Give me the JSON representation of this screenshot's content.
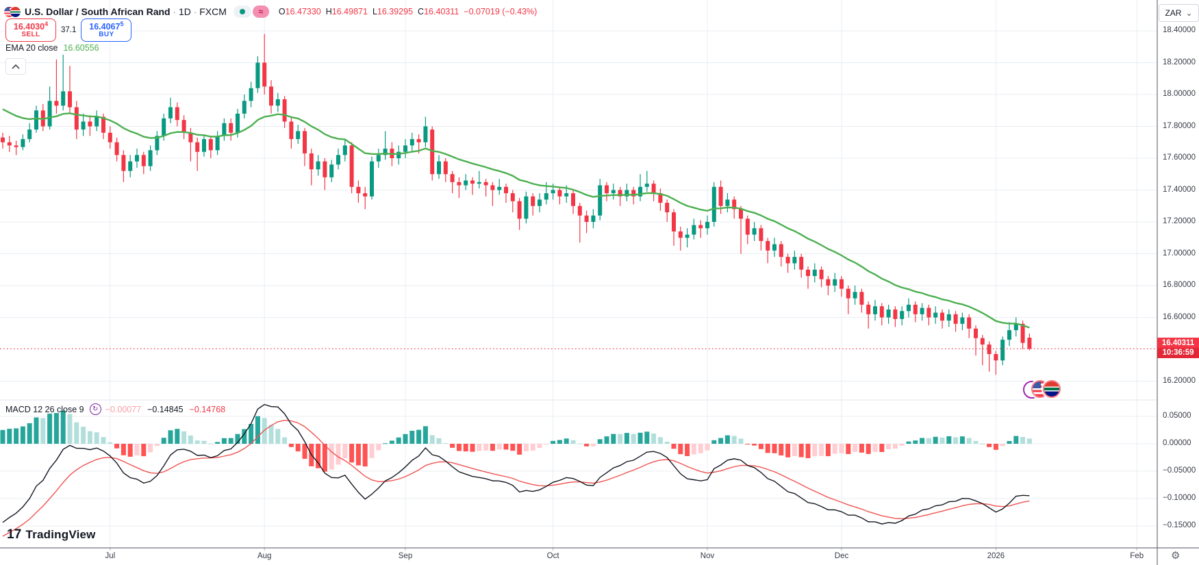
{
  "header": {
    "symbol": "U.S. Dollar / South African Rand",
    "separator": "·",
    "interval": "1D",
    "exchange": "FXCM",
    "alert_glyph": "≈",
    "ohlc": {
      "o_label": "O",
      "o": "16.47330",
      "h_label": "H",
      "h": "16.49871",
      "l_label": "L",
      "l": "16.39295",
      "c_label": "C",
      "c": "16.40311",
      "change": "−0.07019 (−0.43%)"
    }
  },
  "trade_panel": {
    "sell": {
      "price": "16.4030",
      "sup": "4",
      "label": "SELL"
    },
    "spread": "37.1",
    "buy": {
      "price": "16.4067",
      "sup": "5",
      "label": "BUY"
    }
  },
  "ema_row": {
    "label": "EMA 20 close",
    "value": "16.60556"
  },
  "macd_row": {
    "label": "MACD 12 26 close 9",
    "icon_glyph": "↻",
    "hist_value": "−0.00077",
    "macd_value": "−0.14845",
    "signal_value": "−0.14768"
  },
  "price_axis": {
    "currency": "ZAR",
    "chevron": "⌄",
    "labels": [
      {
        "text": "18.40000",
        "value": 18.4
      },
      {
        "text": "18.20000",
        "value": 18.2
      },
      {
        "text": "18.00000",
        "value": 18.0
      },
      {
        "text": "17.80000",
        "value": 17.8
      },
      {
        "text": "17.60000",
        "value": 17.6
      },
      {
        "text": "17.40000",
        "value": 17.4
      },
      {
        "text": "17.20000",
        "value": 17.2
      },
      {
        "text": "17.00000",
        "value": 17.0
      },
      {
        "text": "16.80000",
        "value": 16.8
      },
      {
        "text": "16.60000",
        "value": 16.6
      },
      {
        "text": "16.20000",
        "value": 16.2
      }
    ],
    "last": {
      "price": "16.40311",
      "countdown": "10:36:59"
    }
  },
  "macd_axis": {
    "labels": [
      {
        "text": "0.05000",
        "value": 0.05
      },
      {
        "text": "0.00000",
        "value": 0.0
      },
      {
        "text": "−0.05000",
        "value": -0.05
      },
      {
        "text": "−0.10000",
        "value": -0.1
      },
      {
        "text": "−0.15000",
        "value": -0.15
      }
    ]
  },
  "time_axis": {
    "labels": [
      {
        "text": "Jul",
        "index": 16
      },
      {
        "text": "Aug",
        "index": 39
      },
      {
        "text": "Sep",
        "index": 60
      },
      {
        "text": "Oct",
        "index": 82
      },
      {
        "text": "Nov",
        "index": 105
      },
      {
        "text": "Dec",
        "index": 125
      },
      {
        "text": "2026",
        "index": 148
      },
      {
        "text": "Feb",
        "index": 169
      }
    ]
  },
  "logo": {
    "glyph": "17",
    "text": "TradingView"
  },
  "gear_glyph": "⚙",
  "colors": {
    "up": "#089981",
    "down": "#f23645",
    "ema": "#4caf50",
    "macd_line": "#131722",
    "signal_line": "#ef5350",
    "hist_up": "#26a69a",
    "hist_up_weak": "#b2dfdb",
    "hist_down": "#ff5252",
    "hist_down_weak": "#ffcdd2",
    "grid": "#e8edf3",
    "pane_sep": "#e0e3eb",
    "axis_border": "#50535e",
    "buy_accent": "#2962ff",
    "last_price": "#f23645"
  },
  "chart_data": {
    "type": "candlestick",
    "title": "U.S. Dollar / South African Rand",
    "interval": "1D",
    "source": "FXCM",
    "last_price": 16.40311,
    "last_ohlc": {
      "o": 16.4733,
      "h": 16.49871,
      "l": 16.39295,
      "c": 16.40311
    },
    "price_ylim": [
      16.08,
      18.59
    ],
    "macd_ylim": [
      -0.19,
      0.08
    ],
    "indicators": [
      {
        "name": "EMA",
        "params": [
          20
        ],
        "last": 16.60556
      },
      {
        "name": "MACD",
        "params": [
          12,
          26,
          9
        ],
        "last_hist": -0.00077,
        "last_macd": -0.14845,
        "last_signal": -0.14768
      }
    ],
    "candles": [
      [
        17.73,
        17.76,
        17.66,
        17.7
      ],
      [
        17.7,
        17.74,
        17.64,
        17.68
      ],
      [
        17.68,
        17.71,
        17.62,
        17.67
      ],
      [
        17.67,
        17.75,
        17.65,
        17.72
      ],
      [
        17.72,
        17.82,
        17.7,
        17.78
      ],
      [
        17.78,
        17.93,
        17.76,
        17.9
      ],
      [
        17.9,
        17.94,
        17.77,
        17.8
      ],
      [
        17.8,
        18.05,
        17.78,
        17.96
      ],
      [
        17.96,
        18.22,
        17.88,
        17.93
      ],
      [
        17.93,
        18.25,
        17.9,
        18.02
      ],
      [
        18.02,
        18.18,
        17.88,
        17.92
      ],
      [
        17.92,
        17.96,
        17.72,
        17.78
      ],
      [
        17.78,
        17.88,
        17.74,
        17.83
      ],
      [
        17.83,
        17.87,
        17.74,
        17.8
      ],
      [
        17.8,
        17.9,
        17.77,
        17.86
      ],
      [
        17.86,
        17.88,
        17.72,
        17.76
      ],
      [
        17.76,
        17.8,
        17.66,
        17.7
      ],
      [
        17.7,
        17.73,
        17.58,
        17.62
      ],
      [
        17.62,
        17.65,
        17.45,
        17.52
      ],
      [
        17.52,
        17.62,
        17.48,
        17.58
      ],
      [
        17.58,
        17.66,
        17.54,
        17.62
      ],
      [
        17.62,
        17.64,
        17.5,
        17.55
      ],
      [
        17.55,
        17.68,
        17.52,
        17.65
      ],
      [
        17.65,
        17.77,
        17.62,
        17.74
      ],
      [
        17.74,
        17.88,
        17.71,
        17.85
      ],
      [
        17.85,
        17.98,
        17.82,
        17.92
      ],
      [
        17.92,
        17.95,
        17.8,
        17.84
      ],
      [
        17.84,
        17.87,
        17.72,
        17.76
      ],
      [
        17.76,
        17.79,
        17.58,
        17.7
      ],
      [
        17.7,
        17.73,
        17.52,
        17.64
      ],
      [
        17.64,
        17.75,
        17.61,
        17.72
      ],
      [
        17.72,
        17.74,
        17.6,
        17.65
      ],
      [
        17.65,
        17.77,
        17.62,
        17.74
      ],
      [
        17.74,
        17.85,
        17.71,
        17.82
      ],
      [
        17.82,
        17.85,
        17.71,
        17.76
      ],
      [
        17.76,
        17.91,
        17.73,
        17.88
      ],
      [
        17.88,
        18.0,
        17.85,
        17.96
      ],
      [
        17.96,
        18.08,
        17.92,
        18.04
      ],
      [
        18.04,
        18.24,
        18.01,
        18.2
      ],
      [
        18.2,
        18.38,
        18.0,
        18.05
      ],
      [
        18.05,
        18.09,
        17.88,
        17.93
      ],
      [
        17.93,
        18.01,
        17.89,
        17.97
      ],
      [
        17.97,
        17.99,
        17.79,
        17.83
      ],
      [
        17.83,
        17.86,
        17.66,
        17.72
      ],
      [
        17.72,
        17.81,
        17.69,
        17.77
      ],
      [
        17.77,
        17.79,
        17.55,
        17.63
      ],
      [
        17.63,
        17.66,
        17.43,
        17.53
      ],
      [
        17.53,
        17.62,
        17.49,
        17.58
      ],
      [
        17.58,
        17.6,
        17.4,
        17.48
      ],
      [
        17.48,
        17.59,
        17.45,
        17.56
      ],
      [
        17.56,
        17.66,
        17.53,
        17.62
      ],
      [
        17.62,
        17.72,
        17.58,
        17.68
      ],
      [
        17.68,
        17.7,
        17.38,
        17.42
      ],
      [
        17.42,
        17.46,
        17.32,
        17.38
      ],
      [
        17.38,
        17.42,
        17.28,
        17.36
      ],
      [
        17.36,
        17.61,
        17.34,
        17.58
      ],
      [
        17.58,
        17.66,
        17.54,
        17.62
      ],
      [
        17.62,
        17.77,
        17.59,
        17.66
      ],
      [
        17.66,
        17.7,
        17.55,
        17.6
      ],
      [
        17.6,
        17.68,
        17.56,
        17.64
      ],
      [
        17.64,
        17.72,
        17.6,
        17.68
      ],
      [
        17.68,
        17.76,
        17.64,
        17.72
      ],
      [
        17.72,
        17.75,
        17.63,
        17.7
      ],
      [
        17.7,
        17.86,
        17.67,
        17.8
      ],
      [
        17.78,
        17.8,
        17.46,
        17.5
      ],
      [
        17.5,
        17.62,
        17.47,
        17.58
      ],
      [
        17.58,
        17.6,
        17.45,
        17.5
      ],
      [
        17.5,
        17.52,
        17.38,
        17.45
      ],
      [
        17.45,
        17.48,
        17.35,
        17.43
      ],
      [
        17.43,
        17.5,
        17.4,
        17.46
      ],
      [
        17.46,
        17.48,
        17.37,
        17.44
      ],
      [
        17.44,
        17.52,
        17.41,
        17.45
      ],
      [
        17.45,
        17.47,
        17.36,
        17.43
      ],
      [
        17.43,
        17.45,
        17.3,
        17.4
      ],
      [
        17.4,
        17.47,
        17.37,
        17.42
      ],
      [
        17.42,
        17.44,
        17.32,
        17.38
      ],
      [
        17.38,
        17.4,
        17.26,
        17.33
      ],
      [
        17.33,
        17.35,
        17.15,
        17.22
      ],
      [
        17.22,
        17.39,
        17.19,
        17.36
      ],
      [
        17.36,
        17.38,
        17.24,
        17.3
      ],
      [
        17.3,
        17.38,
        17.26,
        17.34
      ],
      [
        17.34,
        17.45,
        17.31,
        17.38
      ],
      [
        17.38,
        17.44,
        17.34,
        17.4
      ],
      [
        17.4,
        17.42,
        17.31,
        17.36
      ],
      [
        17.36,
        17.43,
        17.32,
        17.38
      ],
      [
        17.38,
        17.4,
        17.25,
        17.3
      ],
      [
        17.3,
        17.32,
        17.07,
        17.24
      ],
      [
        17.24,
        17.27,
        17.13,
        17.2
      ],
      [
        17.2,
        17.28,
        17.16,
        17.24
      ],
      [
        17.24,
        17.47,
        17.21,
        17.43
      ],
      [
        17.43,
        17.45,
        17.33,
        17.38
      ],
      [
        17.38,
        17.44,
        17.34,
        17.4
      ],
      [
        17.4,
        17.42,
        17.3,
        17.36
      ],
      [
        17.36,
        17.44,
        17.33,
        17.4
      ],
      [
        17.4,
        17.42,
        17.31,
        17.36
      ],
      [
        17.36,
        17.5,
        17.33,
        17.42
      ],
      [
        17.42,
        17.52,
        17.39,
        17.44
      ],
      [
        17.44,
        17.46,
        17.33,
        17.38
      ],
      [
        17.38,
        17.41,
        17.27,
        17.32
      ],
      [
        17.32,
        17.34,
        17.2,
        17.26
      ],
      [
        17.26,
        17.28,
        17.05,
        17.14
      ],
      [
        17.14,
        17.17,
        17.02,
        17.1
      ],
      [
        17.1,
        17.16,
        17.04,
        17.12
      ],
      [
        17.12,
        17.22,
        17.09,
        17.18
      ],
      [
        17.18,
        17.21,
        17.1,
        17.16
      ],
      [
        17.16,
        17.24,
        17.12,
        17.2
      ],
      [
        17.2,
        17.45,
        17.17,
        17.42
      ],
      [
        17.42,
        17.46,
        17.25,
        17.3
      ],
      [
        17.3,
        17.38,
        17.26,
        17.34
      ],
      [
        17.34,
        17.36,
        17.22,
        17.28
      ],
      [
        17.28,
        17.3,
        17.0,
        17.22
      ],
      [
        17.22,
        17.24,
        17.06,
        17.12
      ],
      [
        17.12,
        17.2,
        17.08,
        17.16
      ],
      [
        17.16,
        17.18,
        17.02,
        17.08
      ],
      [
        17.08,
        17.1,
        16.94,
        17.02
      ],
      [
        17.02,
        17.1,
        16.98,
        17.06
      ],
      [
        17.06,
        17.08,
        16.92,
        16.98
      ],
      [
        16.98,
        17.0,
        16.88,
        16.94
      ],
      [
        16.94,
        17.02,
        16.9,
        16.98
      ],
      [
        16.98,
        17.0,
        16.85,
        16.9
      ],
      [
        16.9,
        16.92,
        16.78,
        16.86
      ],
      [
        16.86,
        16.94,
        16.82,
        16.9
      ],
      [
        16.9,
        16.92,
        16.79,
        16.84
      ],
      [
        16.84,
        16.86,
        16.74,
        16.8
      ],
      [
        16.8,
        16.88,
        16.76,
        16.84
      ],
      [
        16.84,
        16.86,
        16.73,
        16.78
      ],
      [
        16.78,
        16.8,
        16.62,
        16.72
      ],
      [
        16.72,
        16.8,
        16.68,
        16.76
      ],
      [
        16.76,
        16.78,
        16.63,
        16.68
      ],
      [
        16.68,
        16.7,
        16.53,
        16.62
      ],
      [
        16.62,
        16.71,
        16.58,
        16.67
      ],
      [
        16.67,
        16.69,
        16.55,
        16.6
      ],
      [
        16.6,
        16.68,
        16.56,
        16.65
      ],
      [
        16.65,
        16.67,
        16.54,
        16.59
      ],
      [
        16.59,
        16.67,
        16.55,
        16.64
      ],
      [
        16.64,
        16.72,
        16.6,
        16.68
      ],
      [
        16.68,
        16.7,
        16.57,
        16.62
      ],
      [
        16.62,
        16.69,
        16.58,
        16.66
      ],
      [
        16.66,
        16.68,
        16.55,
        16.6
      ],
      [
        16.6,
        16.67,
        16.56,
        16.63
      ],
      [
        16.63,
        16.65,
        16.53,
        16.58
      ],
      [
        16.58,
        16.65,
        16.54,
        16.62
      ],
      [
        16.62,
        16.64,
        16.51,
        16.56
      ],
      [
        16.56,
        16.63,
        16.52,
        16.6
      ],
      [
        16.6,
        16.62,
        16.47,
        16.53
      ],
      [
        16.53,
        16.55,
        16.36,
        16.47
      ],
      [
        16.47,
        16.49,
        16.3,
        16.43
      ],
      [
        16.43,
        16.45,
        16.26,
        16.37
      ],
      [
        16.37,
        16.39,
        16.24,
        16.33
      ],
      [
        16.33,
        16.48,
        16.3,
        16.46
      ],
      [
        16.46,
        16.57,
        16.42,
        16.52
      ],
      [
        16.52,
        16.6,
        16.48,
        16.56
      ],
      [
        16.56,
        16.58,
        16.4,
        16.44
      ],
      [
        16.473,
        16.499,
        16.393,
        16.403
      ]
    ]
  }
}
